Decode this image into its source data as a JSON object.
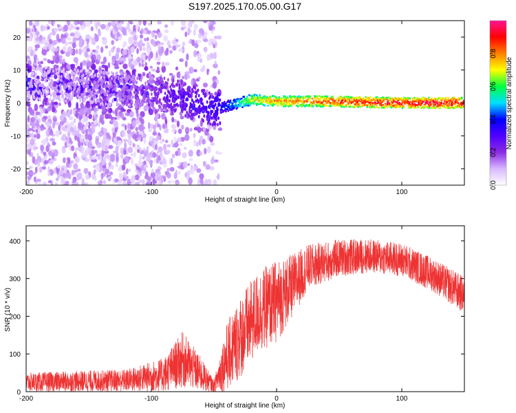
{
  "title": "S197.2025.170.05.00.G17",
  "chart_data": [
    {
      "type": "heatmap",
      "xlabel": "Height of straight line (km)",
      "ylabel": "Frequency (Hz)",
      "xlim": [
        -200,
        150
      ],
      "ylim": [
        -25,
        25
      ],
      "xticks": [
        -200,
        -100,
        0,
        100
      ],
      "yticks": [
        -20,
        -10,
        0,
        10,
        20
      ],
      "colorbar": {
        "label": "Normalized spectral amplitude",
        "range": [
          0,
          1
        ],
        "ticks": [
          "0.0",
          "0.2",
          "0.4",
          "0.6",
          "0.8"
        ],
        "colors": [
          "#ffffff",
          "#d8b8ff",
          "#8a2be2",
          "#5000ff",
          "#0000ff",
          "#00e0ff",
          "#00ff40",
          "#ffff00",
          "#ff8000",
          "#ff0000",
          "#ff1493"
        ]
      },
      "ridge": [
        {
          "x": -200,
          "y": 6,
          "amp": 0.12
        },
        {
          "x": -150,
          "y": 5,
          "amp": 0.15
        },
        {
          "x": -100,
          "y": 3,
          "amp": 0.2
        },
        {
          "x": -80,
          "y": 2,
          "amp": 0.3
        },
        {
          "x": -50,
          "y": -2,
          "amp": 0.35
        },
        {
          "x": -40,
          "y": -1,
          "amp": 0.45
        },
        {
          "x": -20,
          "y": 1,
          "amp": 0.75
        },
        {
          "x": 0,
          "y": 0.5,
          "amp": 0.85
        },
        {
          "x": 30,
          "y": 0.5,
          "amp": 0.9
        },
        {
          "x": 60,
          "y": 0.3,
          "amp": 0.95
        },
        {
          "x": 100,
          "y": 0,
          "amp": 1.0
        },
        {
          "x": 150,
          "y": 0,
          "amp": 1.0
        }
      ]
    },
    {
      "type": "line",
      "xlabel": "Height of straight line (km)",
      "ylabel": "SNR (10 * v/v)",
      "xlim": [
        -200,
        150
      ],
      "ylim": [
        0,
        440
      ],
      "xticks": [
        -200,
        -100,
        0,
        100
      ],
      "yticks": [
        0,
        100,
        200,
        300,
        400
      ],
      "color": "#ee3333",
      "envelope": [
        {
          "x": -200,
          "y": 25,
          "spread": 25
        },
        {
          "x": -120,
          "y": 30,
          "spread": 30
        },
        {
          "x": -90,
          "y": 45,
          "spread": 45
        },
        {
          "x": -75,
          "y": 85,
          "spread": 75
        },
        {
          "x": -60,
          "y": 45,
          "spread": 45
        },
        {
          "x": -50,
          "y": 15,
          "spread": 15
        },
        {
          "x": -40,
          "y": 90,
          "spread": 90
        },
        {
          "x": -30,
          "y": 140,
          "spread": 110
        },
        {
          "x": -15,
          "y": 210,
          "spread": 110
        },
        {
          "x": 0,
          "y": 240,
          "spread": 110
        },
        {
          "x": 10,
          "y": 270,
          "spread": 90
        },
        {
          "x": 25,
          "y": 330,
          "spread": 60
        },
        {
          "x": 50,
          "y": 355,
          "spread": 50
        },
        {
          "x": 75,
          "y": 360,
          "spread": 45
        },
        {
          "x": 100,
          "y": 350,
          "spread": 45
        },
        {
          "x": 125,
          "y": 310,
          "spread": 45
        },
        {
          "x": 150,
          "y": 255,
          "spread": 50
        }
      ]
    }
  ]
}
